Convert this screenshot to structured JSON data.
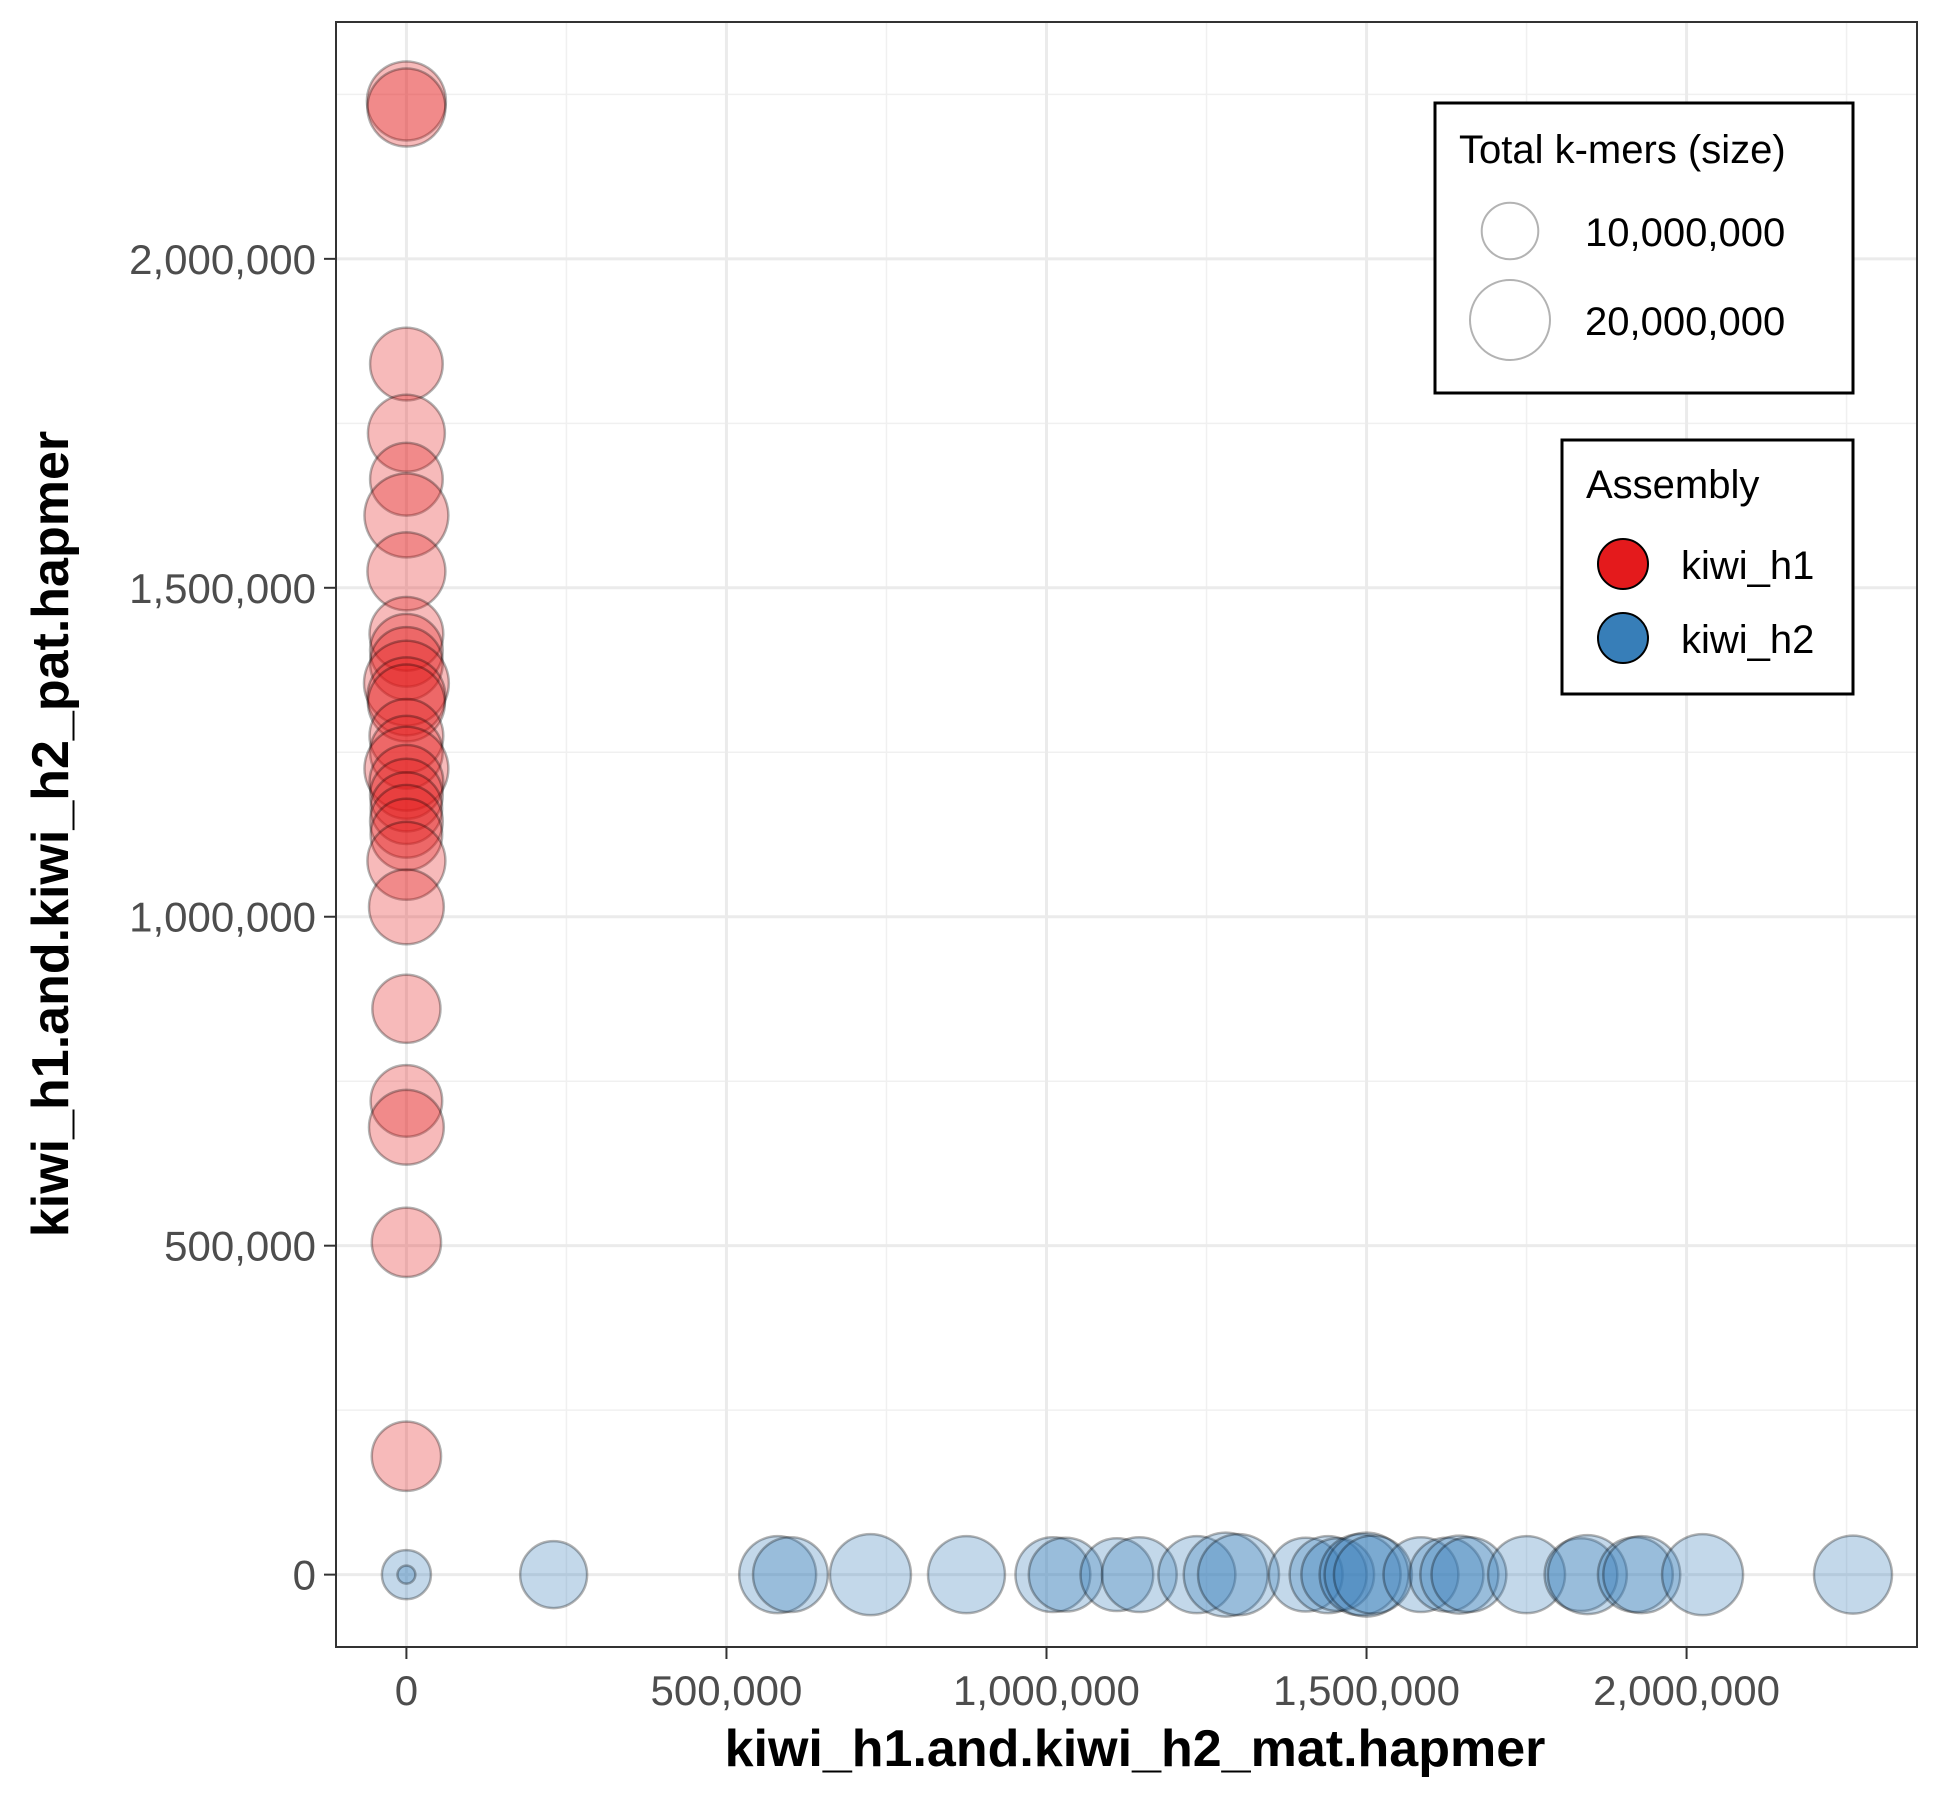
{
  "chart_data": {
    "type": "scatter",
    "xlabel": "kiwi_h1.and.kiwi_h2_mat.hapmer",
    "ylabel": "kiwi_h1.and.kiwi_h2_pat.hapmer",
    "xlim": [
      -110000,
      2360000
    ],
    "ylim": [
      -110000,
      2360000
    ],
    "x_ticks": [
      0,
      500000,
      1000000,
      1500000,
      2000000
    ],
    "y_ticks": [
      0,
      500000,
      1000000,
      1500000,
      2000000
    ],
    "x_tick_labels": [
      "0",
      "500,000",
      "1,000,000",
      "1,500,000",
      "2,000,000"
    ],
    "y_tick_labels": [
      "0",
      "500,000",
      "1,000,000",
      "1,500,000",
      "2,000,000"
    ],
    "grid": true,
    "point_alpha": 0.3,
    "size_legend": {
      "title": "Total k-mers (size)",
      "entries": [
        {
          "label": "10,000,000",
          "value": 10000000
        },
        {
          "label": "20,000,000",
          "value": 20000000
        }
      ]
    },
    "color_legend": {
      "title": "Assembly",
      "placement": "right, inside"
    },
    "series": [
      {
        "name": "kiwi_h1",
        "color": "#e41a1c",
        "points": [
          {
            "x": 0,
            "y": 2240000,
            "size": 19500000
          },
          {
            "x": 0,
            "y": 2230000,
            "size": 19000000
          },
          {
            "x": 0,
            "y": 1840000,
            "size": 16500000
          },
          {
            "x": 0,
            "y": 1735000,
            "size": 18500000
          },
          {
            "x": 0,
            "y": 1665000,
            "size": 16500000
          },
          {
            "x": 0,
            "y": 1610000,
            "size": 22000000
          },
          {
            "x": 0,
            "y": 1525000,
            "size": 19000000
          },
          {
            "x": 0,
            "y": 1430000,
            "size": 17000000
          },
          {
            "x": 0,
            "y": 1405000,
            "size": 16500000
          },
          {
            "x": 0,
            "y": 1385000,
            "size": 16500000
          },
          {
            "x": 0,
            "y": 1355000,
            "size": 22500000
          },
          {
            "x": 0,
            "y": 1335000,
            "size": 19000000
          },
          {
            "x": 0,
            "y": 1325000,
            "size": 18500000
          },
          {
            "x": 0,
            "y": 1275000,
            "size": 17000000
          },
          {
            "x": 0,
            "y": 1250000,
            "size": 16500000
          },
          {
            "x": 0,
            "y": 1225000,
            "size": 22000000
          },
          {
            "x": 0,
            "y": 1205000,
            "size": 17000000
          },
          {
            "x": 0,
            "y": 1185000,
            "size": 16500000
          },
          {
            "x": 0,
            "y": 1165000,
            "size": 16000000
          },
          {
            "x": 0,
            "y": 1145000,
            "size": 16500000
          },
          {
            "x": 0,
            "y": 1125000,
            "size": 16000000
          },
          {
            "x": 0,
            "y": 1085000,
            "size": 19000000
          },
          {
            "x": 0,
            "y": 1015000,
            "size": 17500000
          },
          {
            "x": 0,
            "y": 860000,
            "size": 14500000
          },
          {
            "x": 0,
            "y": 720000,
            "size": 16000000
          },
          {
            "x": 0,
            "y": 680000,
            "size": 17500000
          },
          {
            "x": 0,
            "y": 505000,
            "size": 15000000
          },
          {
            "x": 0,
            "y": 180000,
            "size": 15000000
          }
        ]
      },
      {
        "name": "kiwi_h2",
        "color": "#377eb8",
        "points": [
          {
            "x": 0,
            "y": 0,
            "size": 7500000
          },
          {
            "x": 0,
            "y": 0,
            "size": 1000000
          },
          {
            "x": 230000,
            "y": 0,
            "size": 14000000
          },
          {
            "x": 580000,
            "y": 0,
            "size": 18500000
          },
          {
            "x": 600000,
            "y": 0,
            "size": 17500000
          },
          {
            "x": 725000,
            "y": 0,
            "size": 20500000
          },
          {
            "x": 875000,
            "y": 0,
            "size": 18500000
          },
          {
            "x": 1010000,
            "y": 0,
            "size": 17500000
          },
          {
            "x": 1030000,
            "y": 0,
            "size": 17000000
          },
          {
            "x": 1110000,
            "y": 0,
            "size": 16500000
          },
          {
            "x": 1145000,
            "y": 0,
            "size": 17500000
          },
          {
            "x": 1235000,
            "y": 0,
            "size": 18500000
          },
          {
            "x": 1280000,
            "y": 0,
            "size": 22000000
          },
          {
            "x": 1300000,
            "y": 0,
            "size": 20500000
          },
          {
            "x": 1405000,
            "y": 0,
            "size": 17000000
          },
          {
            "x": 1440000,
            "y": 0,
            "size": 18500000
          },
          {
            "x": 1455000,
            "y": 0,
            "size": 16500000
          },
          {
            "x": 1490000,
            "y": 0,
            "size": 20500000
          },
          {
            "x": 1500000,
            "y": 0,
            "size": 22000000
          },
          {
            "x": 1510000,
            "y": 0,
            "size": 19000000
          },
          {
            "x": 1585000,
            "y": 0,
            "size": 17500000
          },
          {
            "x": 1625000,
            "y": 0,
            "size": 17000000
          },
          {
            "x": 1645000,
            "y": 0,
            "size": 19000000
          },
          {
            "x": 1660000,
            "y": 0,
            "size": 17500000
          },
          {
            "x": 1750000,
            "y": 0,
            "size": 18500000
          },
          {
            "x": 1835000,
            "y": 0,
            "size": 16500000
          },
          {
            "x": 1845000,
            "y": 0,
            "size": 19500000
          },
          {
            "x": 1920000,
            "y": 0,
            "size": 17500000
          },
          {
            "x": 1930000,
            "y": 0,
            "size": 18500000
          },
          {
            "x": 2025000,
            "y": 0,
            "size": 20500000
          },
          {
            "x": 2260000,
            "y": 0,
            "size": 19000000
          }
        ]
      }
    ]
  }
}
